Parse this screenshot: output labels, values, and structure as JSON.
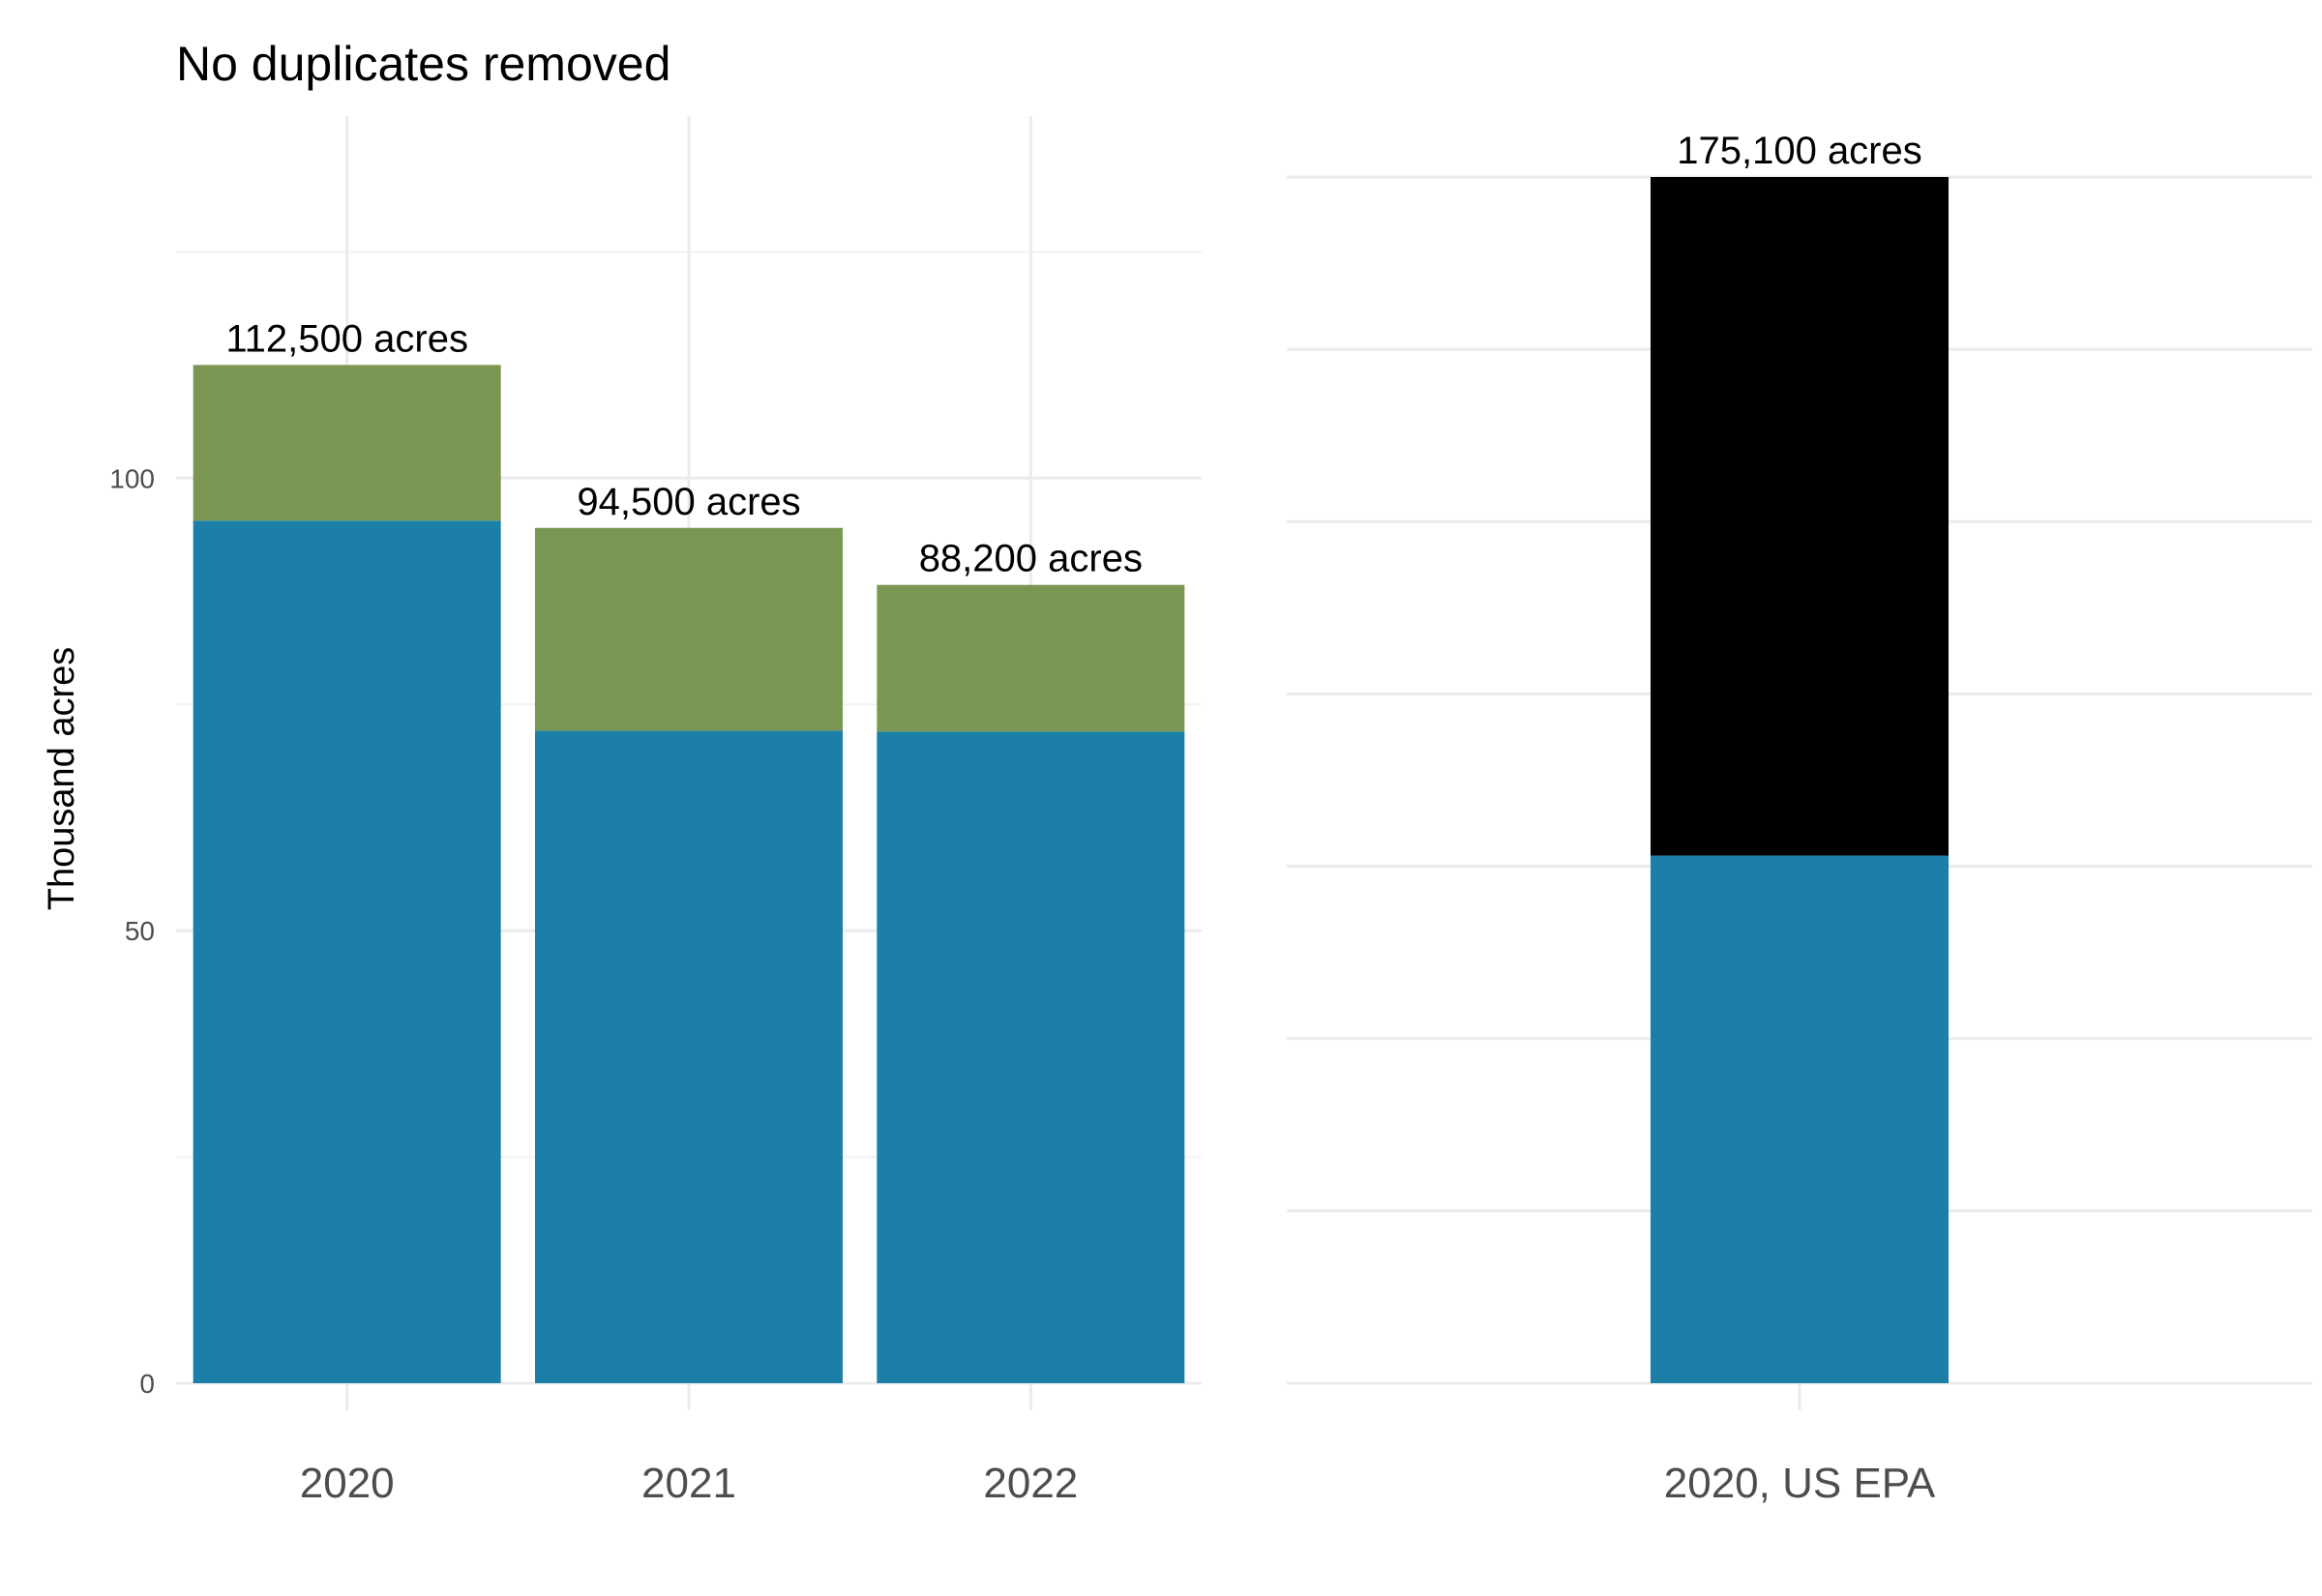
{
  "colors": {
    "series_a": "#1c7fa8",
    "series_b": "#7a9653",
    "series_c": "#000000",
    "grid_major": "#ebebeb",
    "grid_minor": "#f2f2f2"
  },
  "chart_data": [
    {
      "type": "bar",
      "stacked": true,
      "title": "No duplicates removed",
      "ylabel": "Thousand acres",
      "xlabel": "",
      "categories": [
        "2020",
        "2021",
        "2022"
      ],
      "ylim": [
        0,
        140
      ],
      "yticks": [
        0,
        50,
        100
      ],
      "grid": true,
      "series": [
        {
          "values": [
            95.3,
            72.1,
            72.0
          ],
          "color": "#1c7fa8"
        },
        {
          "values": [
            17.2,
            22.4,
            16.2
          ],
          "color": "#7a9653"
        }
      ],
      "totals": [
        112.5,
        94.5,
        88.2
      ],
      "data_labels": [
        "112,500 acres",
        "94,500 acres",
        "88,200 acres"
      ]
    },
    {
      "type": "bar",
      "stacked": true,
      "title": "",
      "ylabel": "",
      "xlabel": "",
      "categories": [
        "2020, US EPA"
      ],
      "ylim": [
        0,
        175.1
      ],
      "grid": true,
      "series": [
        {
          "values": [
            76.6
          ],
          "color": "#1c7fa8"
        },
        {
          "values": [
            98.5
          ],
          "color": "#000000"
        }
      ],
      "totals": [
        175.1
      ],
      "data_labels": [
        "175,100 acres"
      ]
    }
  ]
}
